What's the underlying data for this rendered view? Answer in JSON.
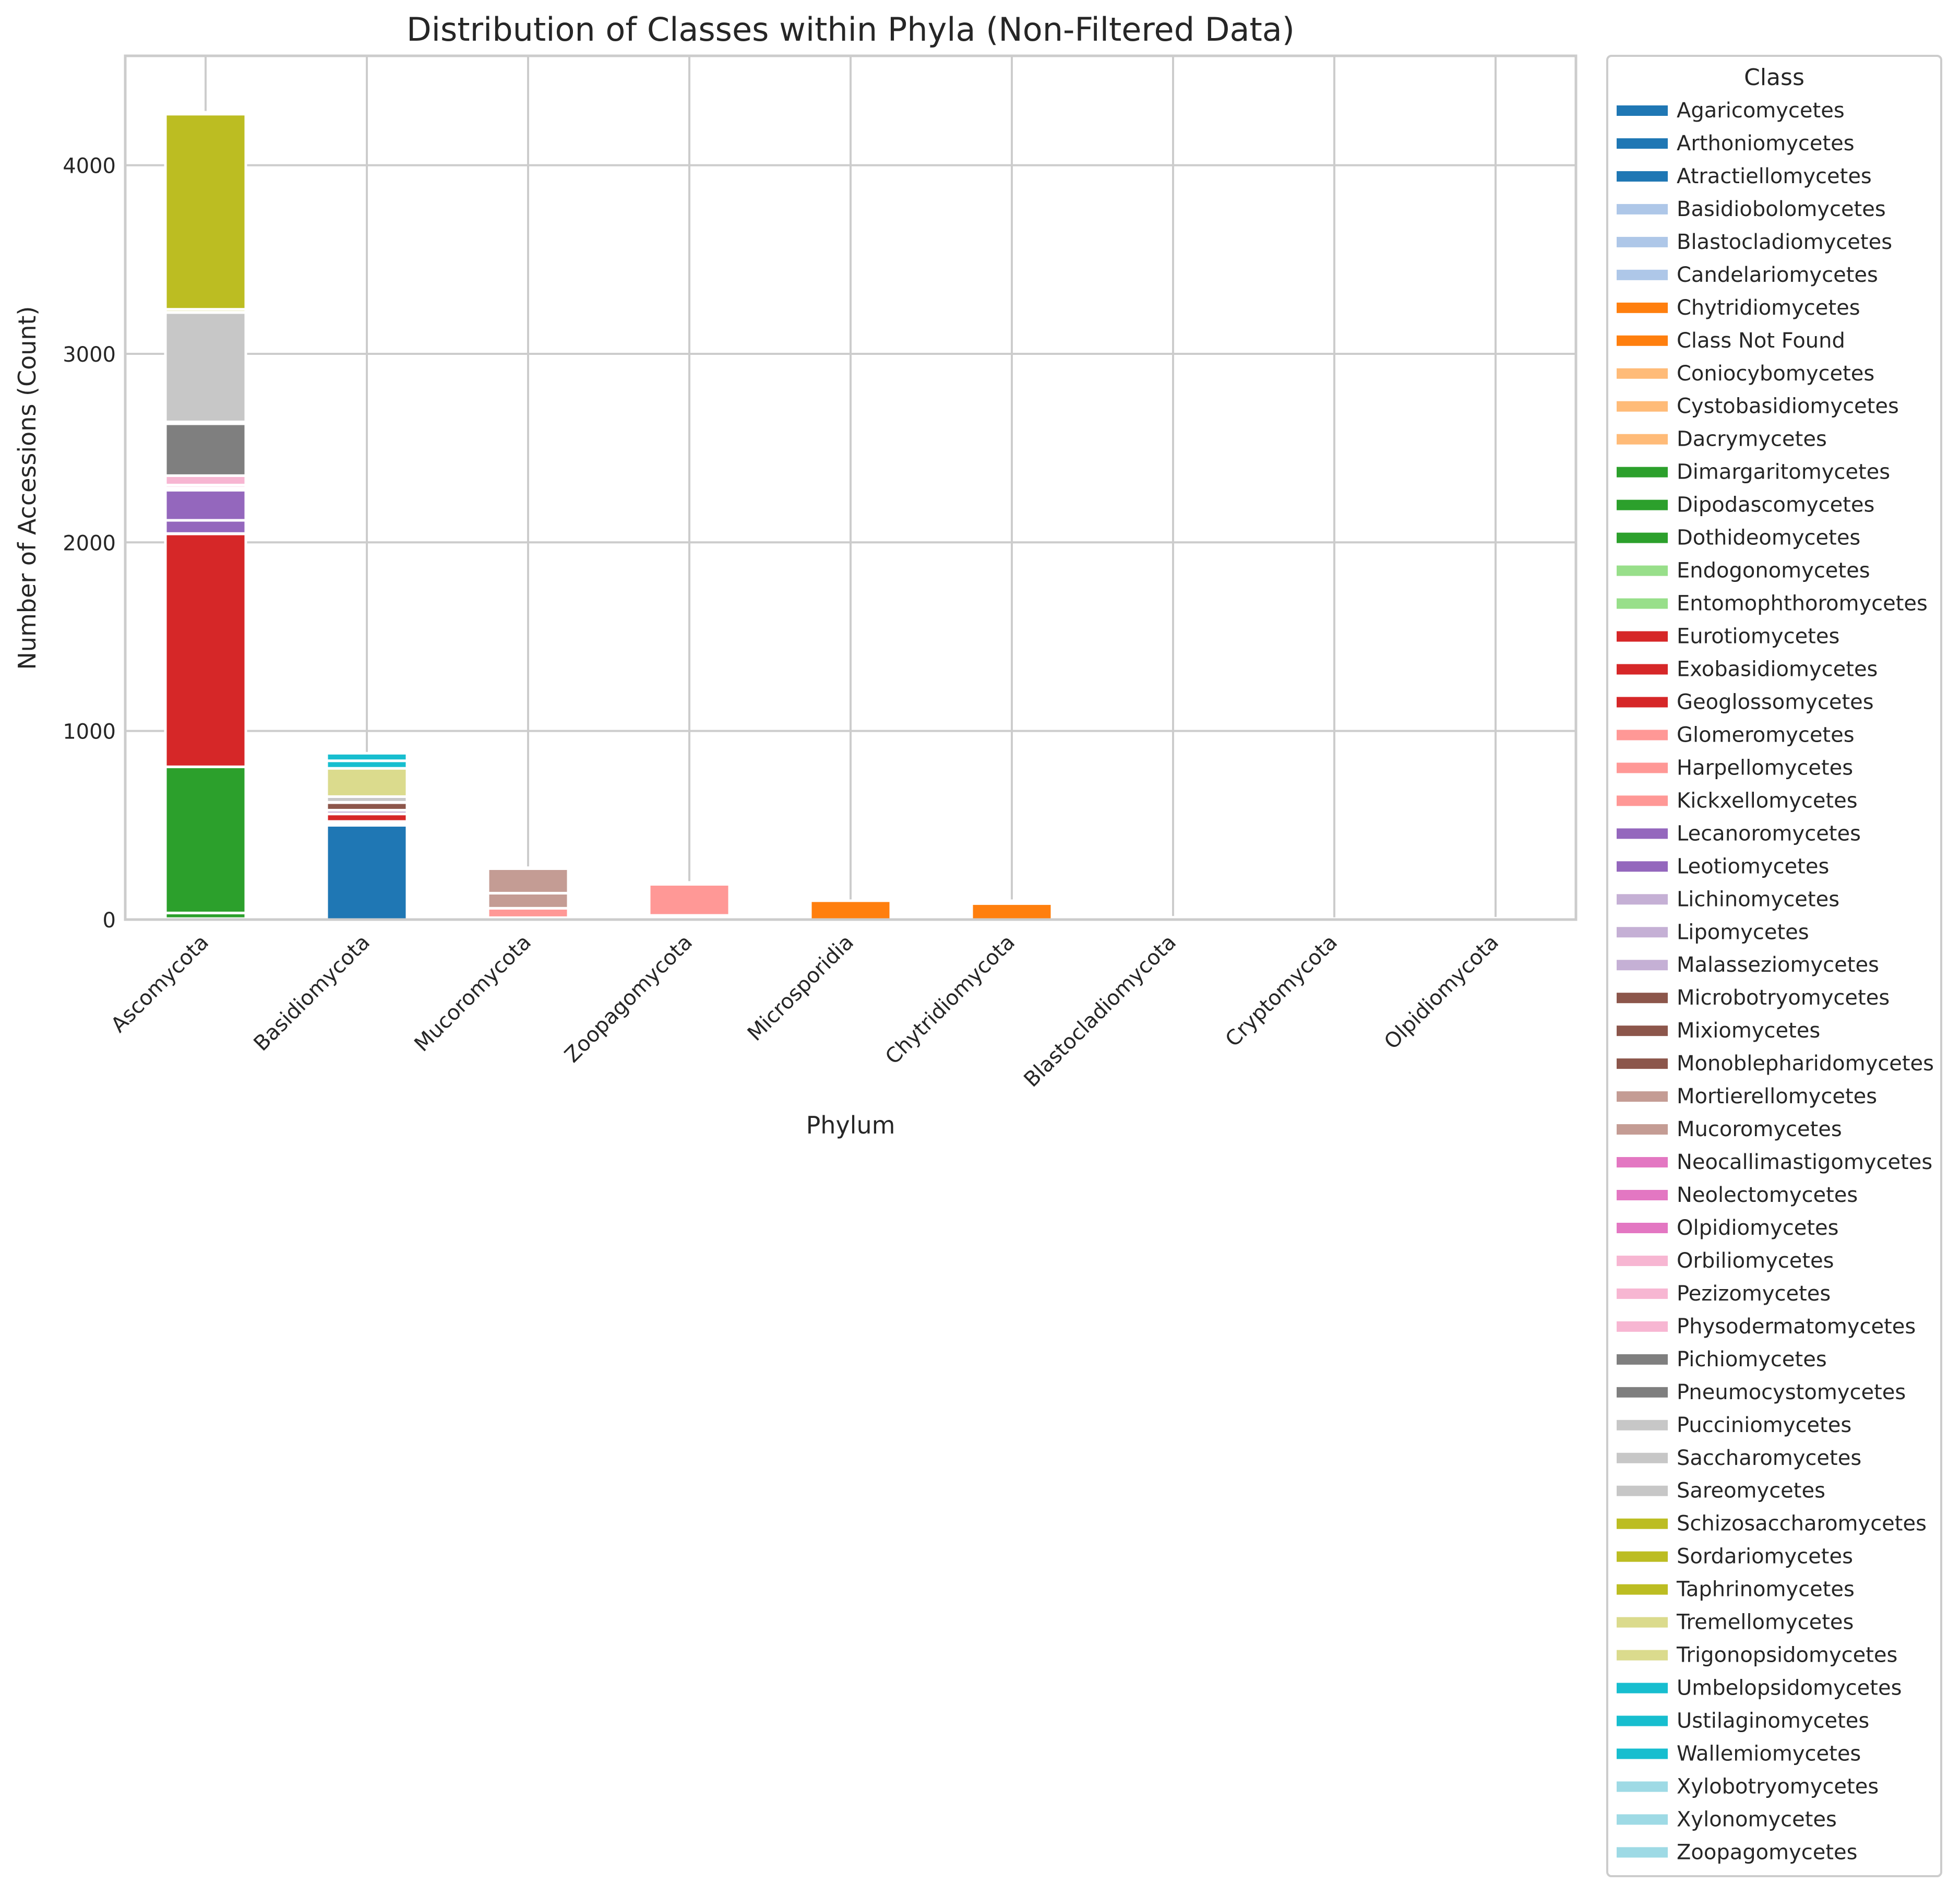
{
  "chart_data": {
    "type": "bar",
    "stacked": true,
    "title": "Distribution of Classes within Phyla (Non-Filtered Data)",
    "xlabel": "Phylum",
    "ylabel": "Number of Accessions (Count)",
    "ylim": [
      0,
      4580
    ],
    "yticks": [
      0,
      1000,
      2000,
      3000,
      4000
    ],
    "grid": true,
    "legend_title": "Class",
    "legend_position": "outside right",
    "categories": [
      "Ascomycota",
      "Basidiomycota",
      "Mucoromycota",
      "Zoopagomycota",
      "Microsporidia",
      "Chytridiomycota",
      "Blastocladiomycota",
      "Cryptomycota",
      "Olpidiomycota"
    ],
    "series": [
      {
        "name": "Agaricomycetes",
        "color": "#1f77b4",
        "values": [
          0,
          500,
          0,
          0,
          0,
          0,
          0,
          0,
          0
        ]
      },
      {
        "name": "Arthoniomycetes",
        "color": "#1f77b4",
        "values": [
          2,
          0,
          0,
          0,
          0,
          0,
          0,
          0,
          0
        ]
      },
      {
        "name": "Atractiellomycetes",
        "color": "#1f77b4",
        "values": [
          0,
          5,
          0,
          0,
          0,
          0,
          0,
          0,
          0
        ]
      },
      {
        "name": "Basidiobolomycetes",
        "color": "#aec7e8",
        "values": [
          0,
          0,
          0,
          5,
          0,
          0,
          0,
          0,
          0
        ]
      },
      {
        "name": "Blastocladiomycetes",
        "color": "#aec7e8",
        "values": [
          0,
          0,
          0,
          0,
          0,
          0,
          10,
          0,
          0
        ]
      },
      {
        "name": "Candelariomycetes",
        "color": "#aec7e8",
        "values": [
          2,
          0,
          0,
          0,
          0,
          0,
          0,
          0,
          0
        ]
      },
      {
        "name": "Chytridiomycetes",
        "color": "#ff7f0e",
        "values": [
          0,
          0,
          0,
          0,
          0,
          85,
          0,
          0,
          0
        ]
      },
      {
        "name": "Class Not Found",
        "color": "#ff7f0e",
        "values": [
          0,
          0,
          5,
          0,
          100,
          5,
          0,
          5,
          5
        ]
      },
      {
        "name": "Coniocybomycetes",
        "color": "#ffbb78",
        "values": [
          1,
          0,
          0,
          0,
          0,
          0,
          0,
          0,
          0
        ]
      },
      {
        "name": "Cystobasidiomycetes",
        "color": "#ffbb78",
        "values": [
          0,
          5,
          0,
          0,
          0,
          0,
          0,
          0,
          0
        ]
      },
      {
        "name": "Dacrymycetes",
        "color": "#ffbb78",
        "values": [
          0,
          10,
          0,
          0,
          0,
          0,
          0,
          0,
          0
        ]
      },
      {
        "name": "Dimargaritomycetes",
        "color": "#2ca02c",
        "values": [
          0,
          0,
          0,
          2,
          0,
          0,
          0,
          0,
          0
        ]
      },
      {
        "name": "Dipodascomycetes",
        "color": "#2ca02c",
        "values": [
          30,
          0,
          0,
          0,
          0,
          0,
          0,
          0,
          0
        ]
      },
      {
        "name": "Dothideomycetes",
        "color": "#2ca02c",
        "values": [
          775,
          0,
          0,
          0,
          0,
          0,
          0,
          0,
          0
        ]
      },
      {
        "name": "Endogonomycetes",
        "color": "#98df8a",
        "values": [
          0,
          0,
          5,
          0,
          0,
          0,
          0,
          0,
          0
        ]
      },
      {
        "name": "Entomophthoromycetes",
        "color": "#98df8a",
        "values": [
          0,
          0,
          0,
          10,
          0,
          0,
          0,
          0,
          0
        ]
      },
      {
        "name": "Eurotiomycetes",
        "color": "#d62728",
        "values": [
          1235,
          0,
          0,
          0,
          0,
          0,
          0,
          0,
          0
        ]
      },
      {
        "name": "Exobasidiomycetes",
        "color": "#d62728",
        "values": [
          0,
          40,
          0,
          0,
          0,
          0,
          0,
          0,
          0
        ]
      },
      {
        "name": "Geoglossomycetes",
        "color": "#d62728",
        "values": [
          2,
          0,
          0,
          0,
          0,
          0,
          0,
          0,
          0
        ]
      },
      {
        "name": "Glomeromycetes",
        "color": "#ff9896",
        "values": [
          0,
          0,
          50,
          0,
          0,
          0,
          0,
          0,
          0
        ]
      },
      {
        "name": "Harpellomycetes",
        "color": "#ff9896",
        "values": [
          0,
          0,
          0,
          5,
          0,
          0,
          0,
          0,
          0
        ]
      },
      {
        "name": "Kickxellomycetes",
        "color": "#ff9896",
        "values": [
          0,
          0,
          0,
          165,
          0,
          0,
          0,
          0,
          0
        ]
      },
      {
        "name": "Lecanoromycetes",
        "color": "#9467bd",
        "values": [
          70,
          0,
          0,
          0,
          0,
          0,
          0,
          0,
          0
        ]
      },
      {
        "name": "Leotiomycetes",
        "color": "#9467bd",
        "values": [
          160,
          0,
          0,
          0,
          0,
          0,
          0,
          0,
          0
        ]
      },
      {
        "name": "Lichinomycetes",
        "color": "#c5b0d5",
        "values": [
          2,
          0,
          0,
          0,
          0,
          0,
          0,
          0,
          0
        ]
      },
      {
        "name": "Lipomycetes",
        "color": "#c5b0d5",
        "values": [
          8,
          0,
          0,
          0,
          0,
          0,
          0,
          0,
          0
        ]
      },
      {
        "name": "Malasseziomycetes",
        "color": "#c5b0d5",
        "values": [
          0,
          20,
          0,
          0,
          0,
          0,
          0,
          0,
          0
        ]
      },
      {
        "name": "Microbotryomycetes",
        "color": "#8c564b",
        "values": [
          0,
          40,
          0,
          0,
          0,
          0,
          0,
          0,
          0
        ]
      },
      {
        "name": "Mixiomycetes",
        "color": "#8c564b",
        "values": [
          0,
          2,
          0,
          0,
          0,
          0,
          0,
          0,
          0
        ]
      },
      {
        "name": "Monoblepharidomycetes",
        "color": "#8c564b",
        "values": [
          0,
          0,
          0,
          0,
          0,
          5,
          0,
          0,
          0
        ]
      },
      {
        "name": "Mortierellomycetes",
        "color": "#c49c94",
        "values": [
          0,
          0,
          80,
          0,
          0,
          0,
          0,
          0,
          0
        ]
      },
      {
        "name": "Mucoromycetes",
        "color": "#c49c94",
        "values": [
          0,
          0,
          130,
          0,
          0,
          0,
          0,
          0,
          0
        ]
      },
      {
        "name": "Neocallimastigomycetes",
        "color": "#e377c2",
        "values": [
          0,
          0,
          0,
          0,
          0,
          5,
          0,
          0,
          0
        ]
      },
      {
        "name": "Neolectomycetes",
        "color": "#e377c2",
        "values": [
          2,
          0,
          0,
          0,
          0,
          0,
          0,
          0,
          0
        ]
      },
      {
        "name": "Olpidiomycetes",
        "color": "#e377c2",
        "values": [
          0,
          0,
          0,
          0,
          0,
          0,
          0,
          0,
          2
        ]
      },
      {
        "name": "Orbiliomycetes",
        "color": "#f7b6d2",
        "values": [
          15,
          0,
          0,
          0,
          0,
          0,
          0,
          0,
          0
        ]
      },
      {
        "name": "Pezizomycetes",
        "color": "#f7b6d2",
        "values": [
          50,
          0,
          0,
          0,
          0,
          0,
          0,
          0,
          0
        ]
      },
      {
        "name": "Physodermatomycetes",
        "color": "#f7b6d2",
        "values": [
          0,
          0,
          0,
          0,
          0,
          0,
          2,
          0,
          0
        ]
      },
      {
        "name": "Pichiomycetes",
        "color": "#7f7f7f",
        "values": [
          275,
          0,
          0,
          0,
          0,
          0,
          0,
          0,
          0
        ]
      },
      {
        "name": "Pneumocystomycetes",
        "color": "#7f7f7f",
        "values": [
          10,
          0,
          0,
          0,
          0,
          0,
          0,
          0,
          0
        ]
      },
      {
        "name": "Pucciniomycetes",
        "color": "#c7c7c7",
        "values": [
          0,
          30,
          0,
          0,
          0,
          0,
          0,
          0,
          0
        ]
      },
      {
        "name": "Saccharomycetes",
        "color": "#c7c7c7",
        "values": [
          580,
          0,
          0,
          0,
          0,
          0,
          0,
          0,
          0
        ]
      },
      {
        "name": "Sareomycetes",
        "color": "#c7c7c7",
        "values": [
          2,
          0,
          0,
          0,
          0,
          0,
          0,
          0,
          0
        ]
      },
      {
        "name": "Schizosaccharomycetes",
        "color": "#bcbd22",
        "values": [
          15,
          0,
          0,
          0,
          0,
          0,
          0,
          0,
          0
        ]
      },
      {
        "name": "Sordariomycetes",
        "color": "#bcbd22",
        "values": [
          1035,
          0,
          0,
          0,
          0,
          0,
          0,
          0,
          0
        ]
      },
      {
        "name": "Taphrinomycetes",
        "color": "#bcbd22",
        "values": [
          5,
          0,
          0,
          0,
          0,
          0,
          0,
          0,
          0
        ]
      },
      {
        "name": "Tremellomycetes",
        "color": "#dbdb8d",
        "values": [
          0,
          150,
          0,
          0,
          0,
          0,
          0,
          0,
          0
        ]
      },
      {
        "name": "Trigonopsidomycetes",
        "color": "#dbdb8d",
        "values": [
          2,
          0,
          0,
          0,
          0,
          0,
          0,
          0,
          0
        ]
      },
      {
        "name": "Umbelopsidomycetes",
        "color": "#17becf",
        "values": [
          0,
          0,
          5,
          0,
          0,
          0,
          0,
          0,
          0
        ]
      },
      {
        "name": "Ustilaginomycetes",
        "color": "#17becf",
        "values": [
          0,
          40,
          0,
          0,
          0,
          0,
          0,
          0,
          0
        ]
      },
      {
        "name": "Wallemiomycetes",
        "color": "#17becf",
        "values": [
          0,
          40,
          0,
          0,
          0,
          0,
          0,
          0,
          0
        ]
      },
      {
        "name": "Xylobotryomycetes",
        "color": "#9edae5",
        "values": [
          1,
          0,
          0,
          0,
          0,
          0,
          0,
          0,
          0
        ]
      },
      {
        "name": "Xylonomycetes",
        "color": "#9edae5",
        "values": [
          2,
          0,
          0,
          0,
          0,
          0,
          0,
          0,
          0
        ]
      },
      {
        "name": "Zoopagomycetes",
        "color": "#9edae5",
        "values": [
          0,
          0,
          0,
          10,
          0,
          0,
          0,
          0,
          0
        ]
      }
    ]
  }
}
